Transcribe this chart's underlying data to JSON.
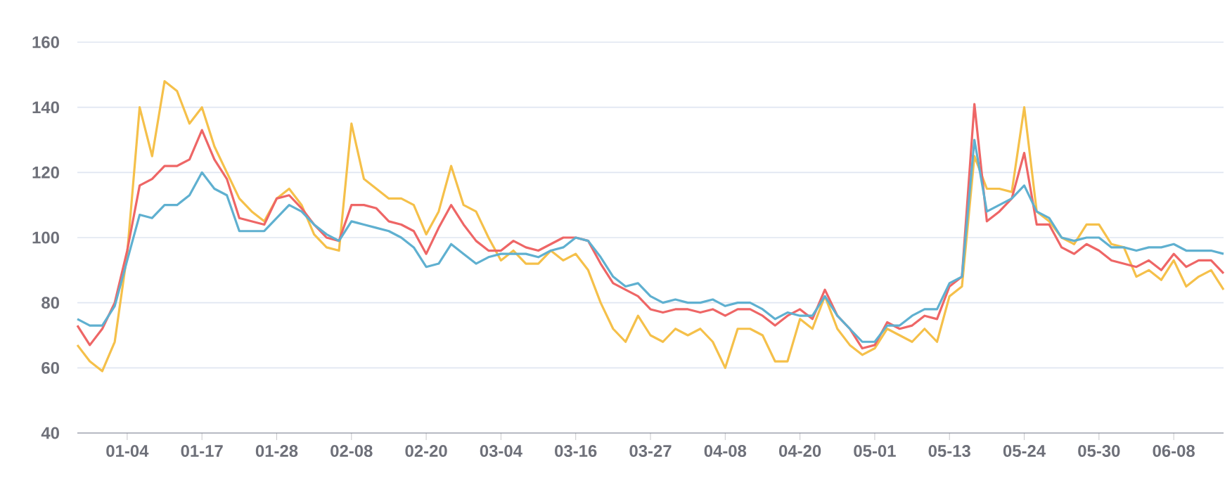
{
  "chart_data": {
    "type": "line",
    "categories": [
      null,
      null,
      null,
      null,
      "01-04",
      null,
      null,
      null,
      null,
      null,
      "01-17",
      null,
      null,
      null,
      null,
      null,
      "01-28",
      null,
      null,
      null,
      null,
      null,
      "02-08",
      null,
      null,
      null,
      null,
      null,
      "02-20",
      null,
      null,
      null,
      null,
      null,
      "03-04",
      null,
      null,
      null,
      null,
      null,
      "03-16",
      null,
      null,
      null,
      null,
      null,
      "03-27",
      null,
      null,
      null,
      null,
      null,
      "04-08",
      null,
      null,
      null,
      null,
      null,
      "04-20",
      null,
      null,
      null,
      null,
      null,
      "05-01",
      null,
      null,
      null,
      null,
      null,
      "05-13",
      null,
      null,
      null,
      null,
      null,
      "05-24",
      null,
      null,
      null,
      null,
      null,
      "05-30",
      null,
      null,
      null,
      null,
      null,
      "06-08",
      null,
      null,
      null,
      null
    ],
    "series": [
      {
        "color": "#f5c04a",
        "values": [
          67,
          62,
          59,
          68,
          95,
          140,
          125,
          148,
          145,
          135,
          140,
          128,
          120,
          112,
          108,
          105,
          112,
          115,
          110,
          101,
          97,
          96,
          135,
          118,
          115,
          112,
          112,
          110,
          101,
          108,
          122,
          110,
          108,
          100,
          93,
          96,
          92,
          92,
          96,
          93,
          95,
          90,
          80,
          72,
          68,
          76,
          70,
          68,
          72,
          70,
          72,
          68,
          60,
          72,
          72,
          70,
          62,
          62,
          75,
          72,
          82,
          72,
          67,
          64,
          66,
          72,
          70,
          68,
          72,
          68,
          82,
          85,
          125,
          115,
          115,
          114,
          140,
          108,
          105,
          100,
          98,
          104,
          104,
          98,
          97,
          88,
          90,
          87,
          93,
          85,
          88,
          90,
          84
        ]
      },
      {
        "color": "#ee6666",
        "values": [
          73,
          67,
          72,
          80,
          96,
          116,
          118,
          122,
          122,
          124,
          133,
          124,
          118,
          106,
          105,
          104,
          112,
          113,
          109,
          104,
          100,
          99,
          110,
          110,
          109,
          105,
          104,
          102,
          95,
          103,
          110,
          104,
          99,
          96,
          96,
          99,
          97,
          96,
          98,
          100,
          100,
          99,
          92,
          86,
          84,
          82,
          78,
          77,
          78,
          78,
          77,
          78,
          76,
          78,
          78,
          76,
          73,
          76,
          78,
          75,
          84,
          76,
          72,
          66,
          67,
          74,
          72,
          73,
          76,
          75,
          85,
          88,
          141,
          105,
          108,
          112,
          126,
          104,
          104,
          97,
          95,
          98,
          96,
          93,
          92,
          91,
          93,
          90,
          95,
          91,
          93,
          93,
          89
        ]
      },
      {
        "color": "#5fb0d0",
        "values": [
          75,
          73,
          73,
          79,
          93,
          107,
          106,
          110,
          110,
          113,
          120,
          115,
          113,
          102,
          102,
          102,
          106,
          110,
          108,
          104,
          101,
          99,
          105,
          104,
          103,
          102,
          100,
          97,
          91,
          92,
          98,
          95,
          92,
          94,
          95,
          95,
          95,
          94,
          96,
          97,
          100,
          99,
          94,
          88,
          85,
          86,
          82,
          80,
          81,
          80,
          80,
          81,
          79,
          80,
          80,
          78,
          75,
          77,
          76,
          76,
          82,
          76,
          72,
          68,
          68,
          73,
          73,
          76,
          78,
          78,
          86,
          88,
          130,
          108,
          110,
          112,
          116,
          108,
          106,
          100,
          99,
          100,
          100,
          97,
          97,
          96,
          97,
          97,
          98,
          96,
          96,
          96,
          95
        ]
      }
    ],
    "ylim": [
      40,
      160
    ],
    "yticks": [
      40,
      60,
      80,
      100,
      120,
      140,
      160
    ],
    "grid": "y",
    "marker": "none",
    "line_style": "solid"
  }
}
